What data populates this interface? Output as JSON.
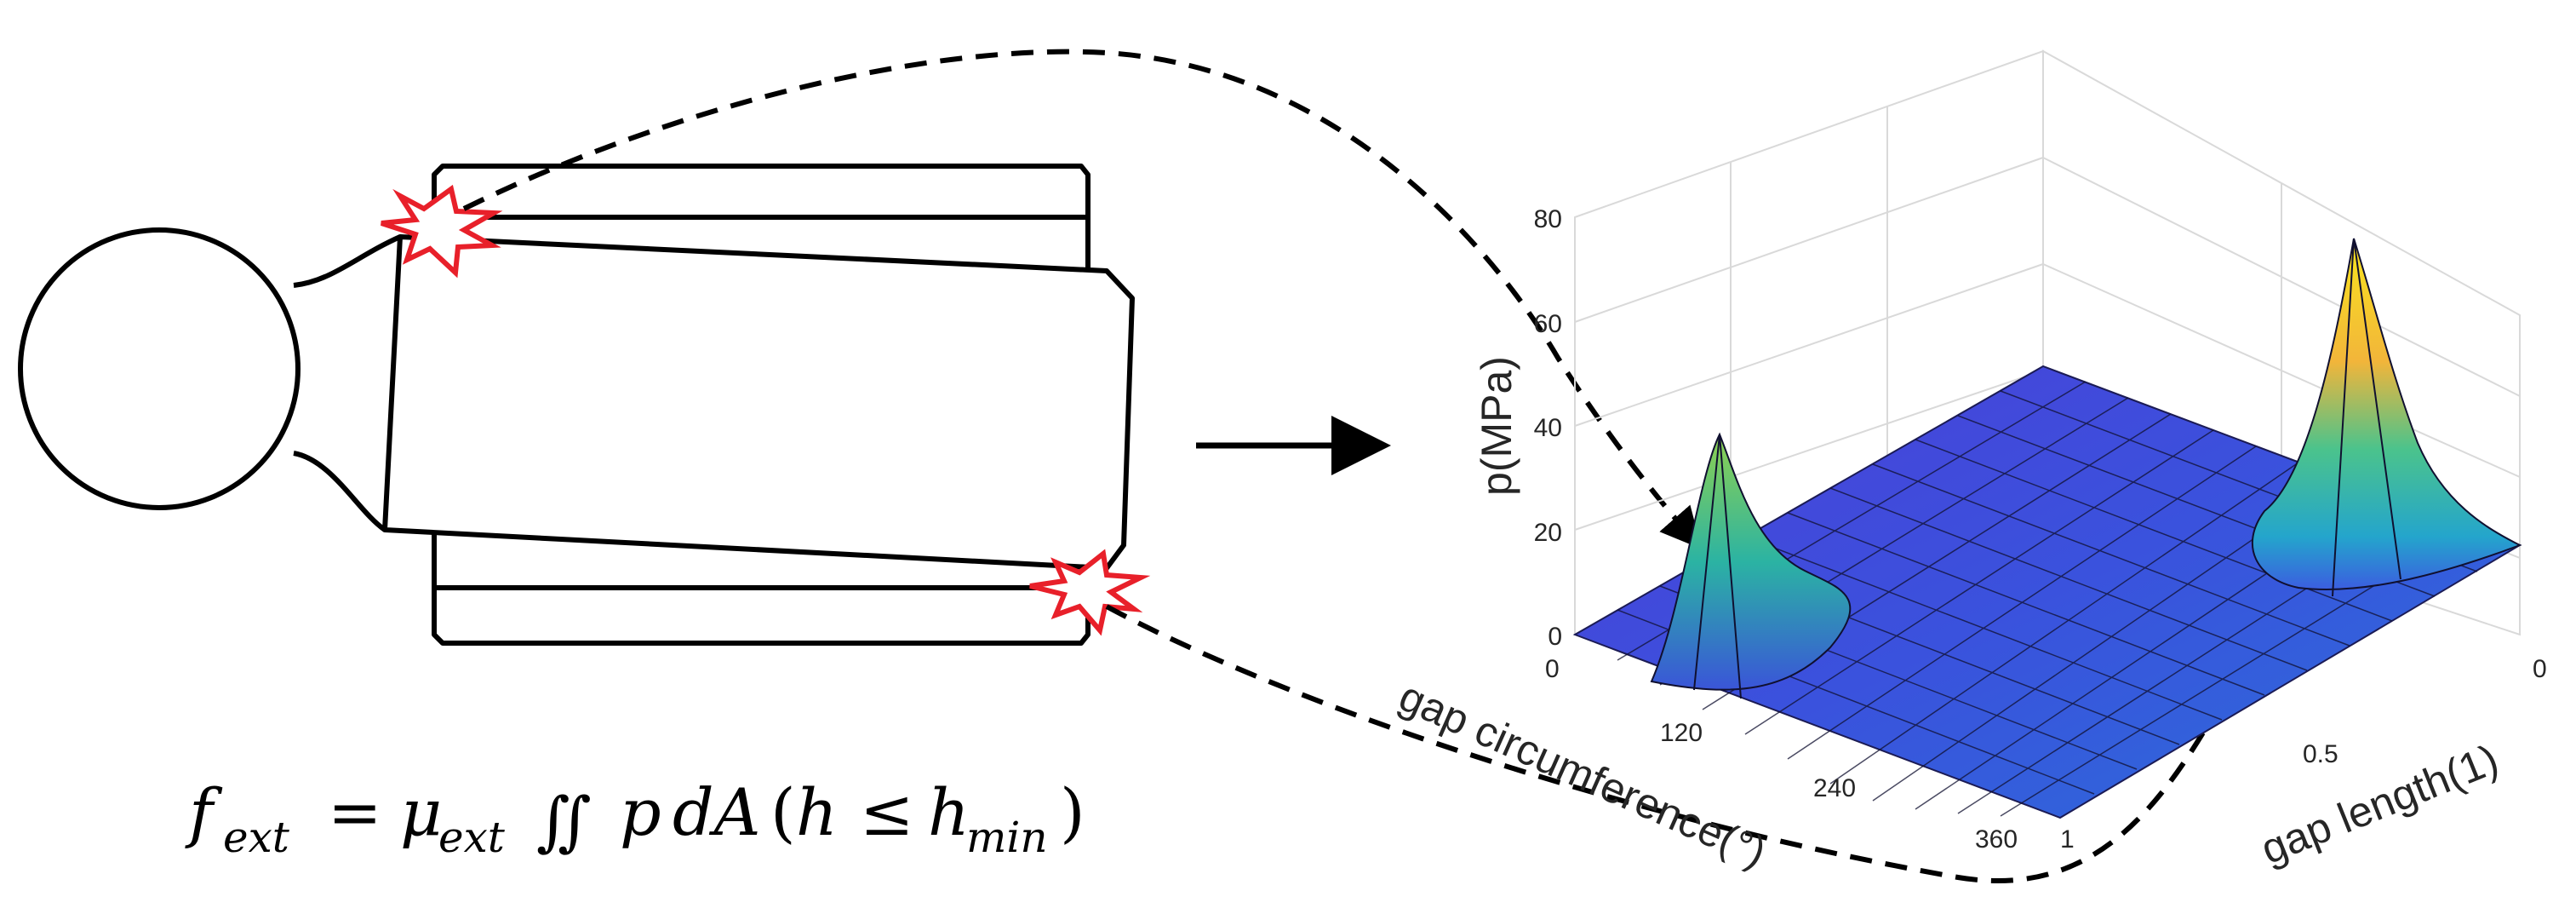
{
  "formula": {
    "f": "f",
    "ext_sub": "ext",
    "equals": "=",
    "mu": "μ",
    "mu_sub": "ext",
    "integral": "∬",
    "p": "p",
    "dA": "dA",
    "cond_open": "(",
    "h": "h",
    "le": "≤",
    "hmin_h": "h",
    "hmin_sub": "min",
    "cond_close": ")"
  },
  "chart_data": {
    "type": "surface",
    "zlabel": "p(MPa)",
    "xlabel": "gap circumference(°)",
    "ylabel": "gap length(1)",
    "z_ticks": [
      "0",
      "20",
      "40",
      "60",
      "80"
    ],
    "x_ticks": [
      "0",
      "120",
      "240",
      "360"
    ],
    "y_ticks": [
      "0",
      "0.5",
      "1"
    ],
    "zlim": [
      0,
      80
    ],
    "xlim": [
      0,
      360
    ],
    "ylim": [
      0,
      1
    ],
    "grid": true,
    "colormap": "parula",
    "peaks": [
      {
        "circumference": 30,
        "length": 1,
        "pressure": 38
      },
      {
        "circumference": 360,
        "length": 0.15,
        "pressure": 76
      }
    ]
  },
  "colors": {
    "surface_low": "#3f3bd6",
    "surface_mid": "#21a7c9",
    "surface_high": "#f7e51f",
    "contact_marker": "#e8202a",
    "line": "#000000"
  },
  "icons": {
    "contact_marker": "red-starburst-icon",
    "flow_arrow": "right-arrow-icon"
  }
}
